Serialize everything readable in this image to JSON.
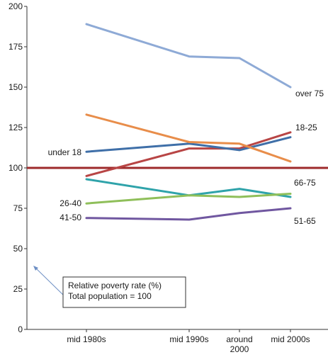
{
  "chart_data": {
    "type": "line",
    "title": "",
    "xlabel": "",
    "ylabel": "",
    "categories": [
      "mid 1980s",
      "mid 1990s",
      "around 2000",
      "mid 2000s"
    ],
    "x_tick_lines": [
      [
        "mid 1980s"
      ],
      [
        "mid 1990s"
      ],
      [
        "around",
        "2000"
      ],
      [
        "mid 2000s"
      ]
    ],
    "ylim": [
      0,
      200
    ],
    "yticks": [
      0,
      25,
      50,
      75,
      100,
      125,
      150,
      175,
      200
    ],
    "grid": false,
    "reference_line": {
      "value": 100,
      "color": "#9e2a2b"
    },
    "series": [
      {
        "name": "over 75",
        "color": "#8eaad6",
        "values": [
          189,
          169,
          168,
          150
        ]
      },
      {
        "name": "18-25",
        "color": "#b84545",
        "values": [
          95,
          112,
          112,
          122
        ]
      },
      {
        "name": "under 18",
        "color": "#3f6fa8",
        "values": [
          110,
          115,
          111,
          119
        ]
      },
      {
        "name": "66-75",
        "color": "#e88d4a",
        "values": [
          133,
          116,
          115,
          104
        ]
      },
      {
        "name": "51-65",
        "color": "#2fa3aa",
        "values": [
          93,
          83,
          87,
          82
        ]
      },
      {
        "name": "26-40",
        "color": "#8fbf5a",
        "values": [
          78,
          83,
          82,
          84
        ]
      },
      {
        "name": "41-50",
        "color": "#7057a0",
        "values": [
          69,
          68,
          72,
          75
        ]
      }
    ],
    "annotation": {
      "lines": [
        "Relative poverty rate (%)",
        "Total population  = 100"
      ]
    }
  }
}
